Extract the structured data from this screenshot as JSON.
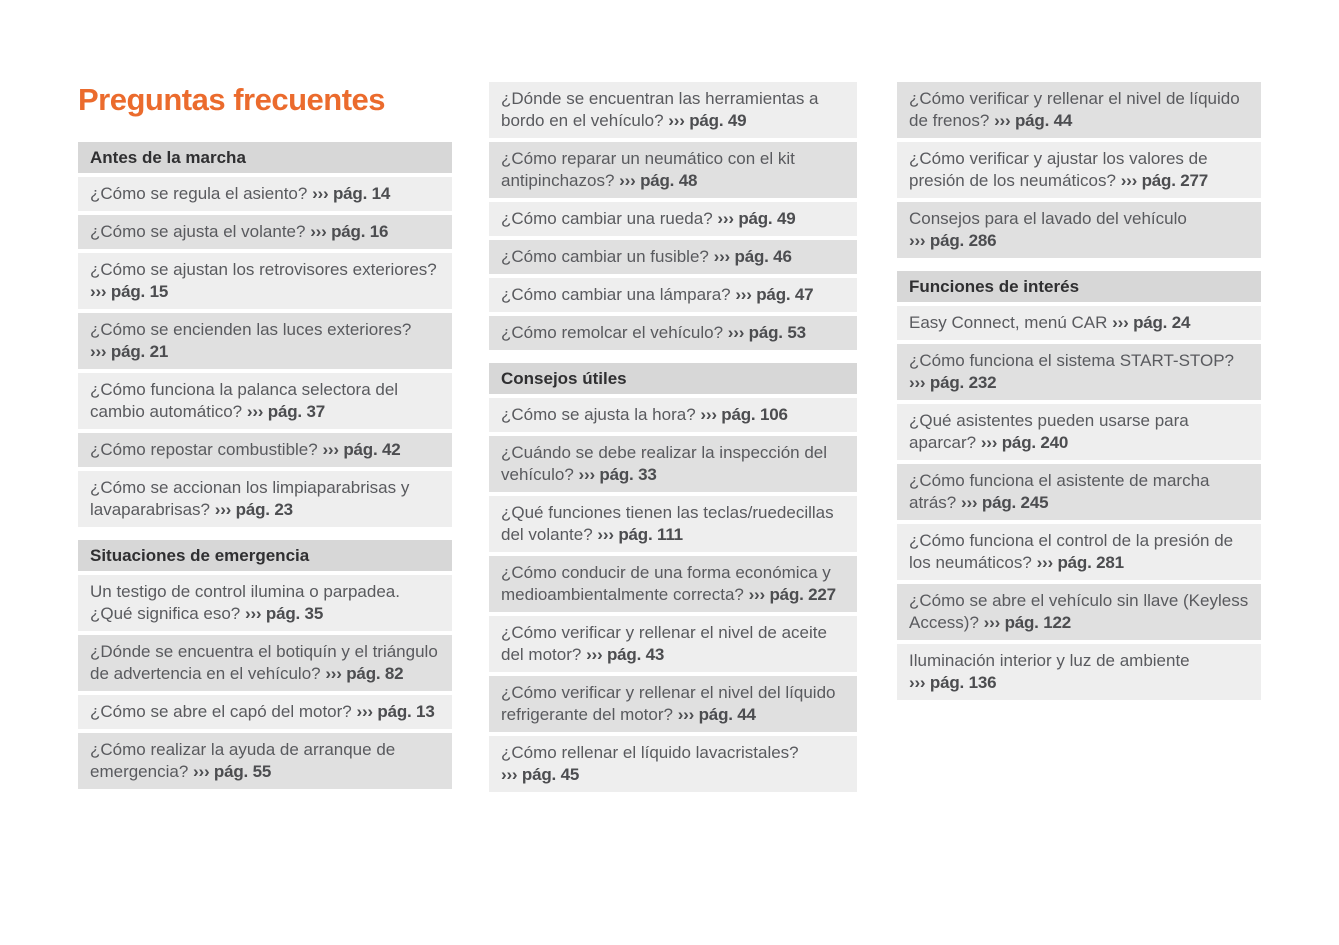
{
  "title": "Preguntas frecuentes",
  "accent_color": "#eb6b2d",
  "colors": {
    "header_bg": "#d7d7d7",
    "row_light": "#eeeeee",
    "row_dark": "#e0e0e0",
    "header_text": "#2f2f31",
    "body_text": "#595a5e",
    "ref_text": "#4c4d50"
  },
  "ref_arrow": "›››",
  "columns": [
    {
      "blocks": [
        {
          "type": "header",
          "text": "Antes de la marcha"
        },
        {
          "type": "item",
          "shade": "light",
          "text": "¿Cómo se regula el asiento?",
          "ref": "››› pág. 14"
        },
        {
          "type": "item",
          "shade": "dark",
          "text": "¿Cómo se ajusta el volante?",
          "ref": "››› pág. 16"
        },
        {
          "type": "item",
          "shade": "light",
          "text": "¿Cómo se ajustan los retrovisores exteriores?",
          "ref": "››› pág. 15"
        },
        {
          "type": "item",
          "shade": "dark",
          "text": "¿Cómo se encienden las luces exteriores?",
          "ref": "››› pág. 21"
        },
        {
          "type": "item",
          "shade": "light",
          "text": "¿Cómo funciona la palanca selectora del cambio automático?",
          "ref": "››› pág. 37"
        },
        {
          "type": "item",
          "shade": "dark",
          "text": "¿Cómo repostar combustible?",
          "ref": "››› pág. 42"
        },
        {
          "type": "item",
          "shade": "light",
          "text": "¿Cómo se accionan los limpiaparabrisas y lavaparabrisas?",
          "ref": "››› pág. 23"
        },
        {
          "type": "header",
          "text": "Situaciones de emergencia"
        },
        {
          "type": "item",
          "shade": "light",
          "text": "Un testigo de control ilumina o parpadea. ¿Qué significa eso?",
          "ref": "››› pág. 35"
        },
        {
          "type": "item",
          "shade": "dark",
          "text": "¿Dónde se encuentra el botiquín y el triángulo de advertencia en el vehículo?",
          "ref": "››› pág. 82"
        },
        {
          "type": "item",
          "shade": "light",
          "text": "¿Cómo se abre el capó del motor?",
          "ref": "››› pág. 13"
        },
        {
          "type": "item",
          "shade": "dark",
          "text": "¿Cómo realizar la ayuda de arranque de emergencia?",
          "ref": "››› pág. 55"
        }
      ]
    },
    {
      "blocks": [
        {
          "type": "item",
          "shade": "light",
          "text": "¿Dónde se encuentran las herramientas a bordo en el vehículo?",
          "ref": "››› pág. 49"
        },
        {
          "type": "item",
          "shade": "dark",
          "text": "¿Cómo reparar un neumático con el kit antipinchazos?",
          "ref": "››› pág. 48"
        },
        {
          "type": "item",
          "shade": "light",
          "text": "¿Cómo cambiar una rueda?",
          "ref": "››› pág. 49"
        },
        {
          "type": "item",
          "shade": "dark",
          "text": "¿Cómo cambiar un fusible?",
          "ref": "››› pág. 46"
        },
        {
          "type": "item",
          "shade": "light",
          "text": "¿Cómo cambiar una lámpara?",
          "ref": "››› pág. 47"
        },
        {
          "type": "item",
          "shade": "dark",
          "text": "¿Cómo remolcar el vehículo?",
          "ref": "››› pág. 53"
        },
        {
          "type": "header",
          "text": "Consejos útiles"
        },
        {
          "type": "item",
          "shade": "light",
          "text": "¿Cómo se ajusta la hora?",
          "ref": "››› pág. 106"
        },
        {
          "type": "item",
          "shade": "dark",
          "text": "¿Cuándo se debe realizar la inspección del vehículo?",
          "ref": "››› pág. 33"
        },
        {
          "type": "item",
          "shade": "light",
          "text": "¿Qué funciones tienen las teclas/ruedecillas del volante?",
          "ref": "››› pág. 111"
        },
        {
          "type": "item",
          "shade": "dark",
          "text": "¿Cómo conducir de una forma económica y medioambientalmente correcta?",
          "ref": "››› pág. 227"
        },
        {
          "type": "item",
          "shade": "light",
          "text": "¿Cómo verificar y rellenar el nivel de aceite del motor?",
          "ref": "››› pág. 43"
        },
        {
          "type": "item",
          "shade": "dark",
          "text": "¿Cómo verificar y rellenar el nivel del líquido refrigerante del motor?",
          "ref": "››› pág. 44"
        },
        {
          "type": "item",
          "shade": "light",
          "text": "¿Cómo rellenar el líquido lavacristales?",
          "ref": "››› pág. 45"
        }
      ]
    },
    {
      "blocks": [
        {
          "type": "item",
          "shade": "dark",
          "text": "¿Cómo verificar y rellenar el nivel de líquido de frenos?",
          "ref": "››› pág. 44"
        },
        {
          "type": "item",
          "shade": "light",
          "text": "¿Cómo verificar y ajustar los valores de presión de los neumáticos?",
          "ref": "››› pág. 277"
        },
        {
          "type": "item",
          "shade": "dark",
          "text": "Consejos para el lavado del vehículo",
          "ref": "››› pág. 286"
        },
        {
          "type": "header",
          "text": "Funciones de interés"
        },
        {
          "type": "item",
          "shade": "light",
          "text": "Easy Connect, menú CAR",
          "ref": "››› pág. 24"
        },
        {
          "type": "item",
          "shade": "dark",
          "text": "¿Cómo funciona el sistema START-STOP?",
          "ref": "››› pág. 232"
        },
        {
          "type": "item",
          "shade": "light",
          "text": "¿Qué asistentes pueden usarse para aparcar?",
          "ref": "››› pág. 240"
        },
        {
          "type": "item",
          "shade": "dark",
          "text": "¿Cómo funciona el asistente de marcha atrás?",
          "ref": "››› pág. 245"
        },
        {
          "type": "item",
          "shade": "light",
          "text": "¿Cómo funciona el control de la presión de los neumáticos?",
          "ref": "››› pág. 281"
        },
        {
          "type": "item",
          "shade": "dark",
          "text": "¿Cómo se abre el vehículo sin llave (Keyless Access)?",
          "ref": "››› pág. 122"
        },
        {
          "type": "item",
          "shade": "light",
          "text": "Iluminación interior y luz de ambiente",
          "ref": "››› pág. 136"
        }
      ]
    }
  ]
}
